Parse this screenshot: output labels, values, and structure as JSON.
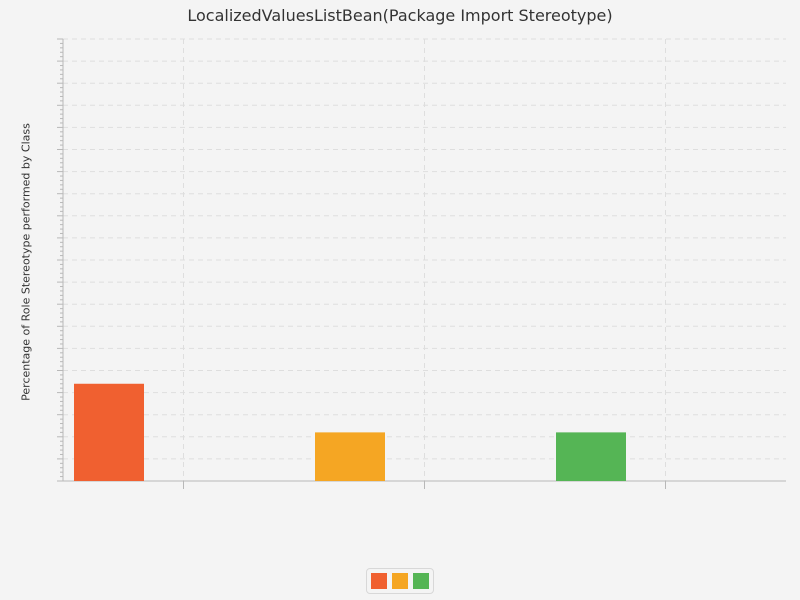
{
  "chart_data": {
    "type": "bar",
    "title": "LocalizedValuesListBean(Package Import Stereotype)",
    "xlabel": "",
    "ylabel": "Percentage of Role Stereotype performed by Class",
    "categories": [
      "",
      "",
      ""
    ],
    "values": [
      22,
      11,
      11
    ],
    "colors": [
      "#f06030",
      "#f5a623",
      "#55b555"
    ],
    "ylim": [
      0,
      100
    ],
    "grid": true,
    "legend_position": "bottom",
    "legend_entries": [
      "",
      "",
      ""
    ]
  }
}
